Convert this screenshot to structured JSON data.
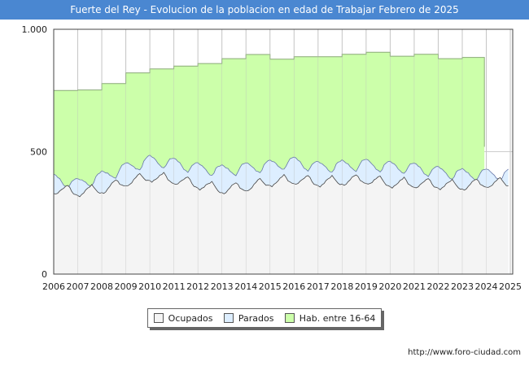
{
  "chart_data": {
    "type": "area",
    "title": "Fuerte del Rey - Evolucion de la poblacion en edad de Trabajar Febrero de 2025",
    "x_ticks": [
      "2006",
      "2007",
      "2008",
      "2009",
      "2010",
      "2011",
      "2012",
      "2013",
      "2014",
      "2015",
      "2016",
      "2017",
      "2018",
      "2019",
      "2020",
      "2021",
      "2022",
      "2023",
      "2024",
      "2025"
    ],
    "y_ticks": [
      0,
      500,
      1000
    ],
    "y_tick_labels": [
      "0",
      "500",
      "1.000"
    ],
    "ylim": [
      0,
      1000
    ],
    "xlim": [
      2006,
      2025.1
    ],
    "grid": true,
    "series": [
      {
        "name": "Hab. entre 16-64",
        "color": "#ccffaa",
        "line_color": "#8aaa77",
        "steps": [
          {
            "year": 2006,
            "value": 750
          },
          {
            "year": 2007,
            "value": 752
          },
          {
            "year": 2008,
            "value": 778
          },
          {
            "year": 2009,
            "value": 822
          },
          {
            "year": 2010,
            "value": 838
          },
          {
            "year": 2011,
            "value": 850
          },
          {
            "year": 2012,
            "value": 860
          },
          {
            "year": 2013,
            "value": 880
          },
          {
            "year": 2014,
            "value": 897
          },
          {
            "year": 2015,
            "value": 878
          },
          {
            "year": 2016,
            "value": 888
          },
          {
            "year": 2017,
            "value": 888
          },
          {
            "year": 2018,
            "value": 898
          },
          {
            "year": 2019,
            "value": 906
          },
          {
            "year": 2020,
            "value": 890
          },
          {
            "year": 2021,
            "value": 898
          },
          {
            "year": 2022,
            "value": 880
          },
          {
            "year": 2023,
            "value": 885
          }
        ],
        "end_year": 2023.92
      },
      {
        "name": "Parados",
        "color": "#ddeeff",
        "line_color": "#6677aa",
        "yearly_base": [
          395,
          375,
          405,
          440,
          470,
          460,
          440,
          430,
          440,
          450,
          465,
          445,
          450,
          455,
          445,
          440,
          425,
          415,
          415
        ],
        "seasonal": [
          15,
          10,
          4,
          -2,
          -12,
          -22,
          -28,
          -32,
          -20,
          -2,
          8,
          12
        ]
      },
      {
        "name": "Ocupados",
        "color": "#f4f4f4",
        "line_color": "#444444",
        "yearly_base": [
          345,
          335,
          345,
          375,
          395,
          385,
          365,
          345,
          355,
          375,
          385,
          375,
          380,
          385,
          370,
          370,
          365,
          360,
          370
        ],
        "seasonal": [
          -14,
          -18,
          -12,
          -5,
          4,
          12,
          18,
          24,
          14,
          0,
          -8,
          -12
        ]
      }
    ],
    "legend": [
      "Ocupados",
      "Parados",
      "Hab. entre 16-64"
    ],
    "legend_position": "bottom-center"
  },
  "footer": {
    "url": "http://www.foro-ciudad.com"
  }
}
